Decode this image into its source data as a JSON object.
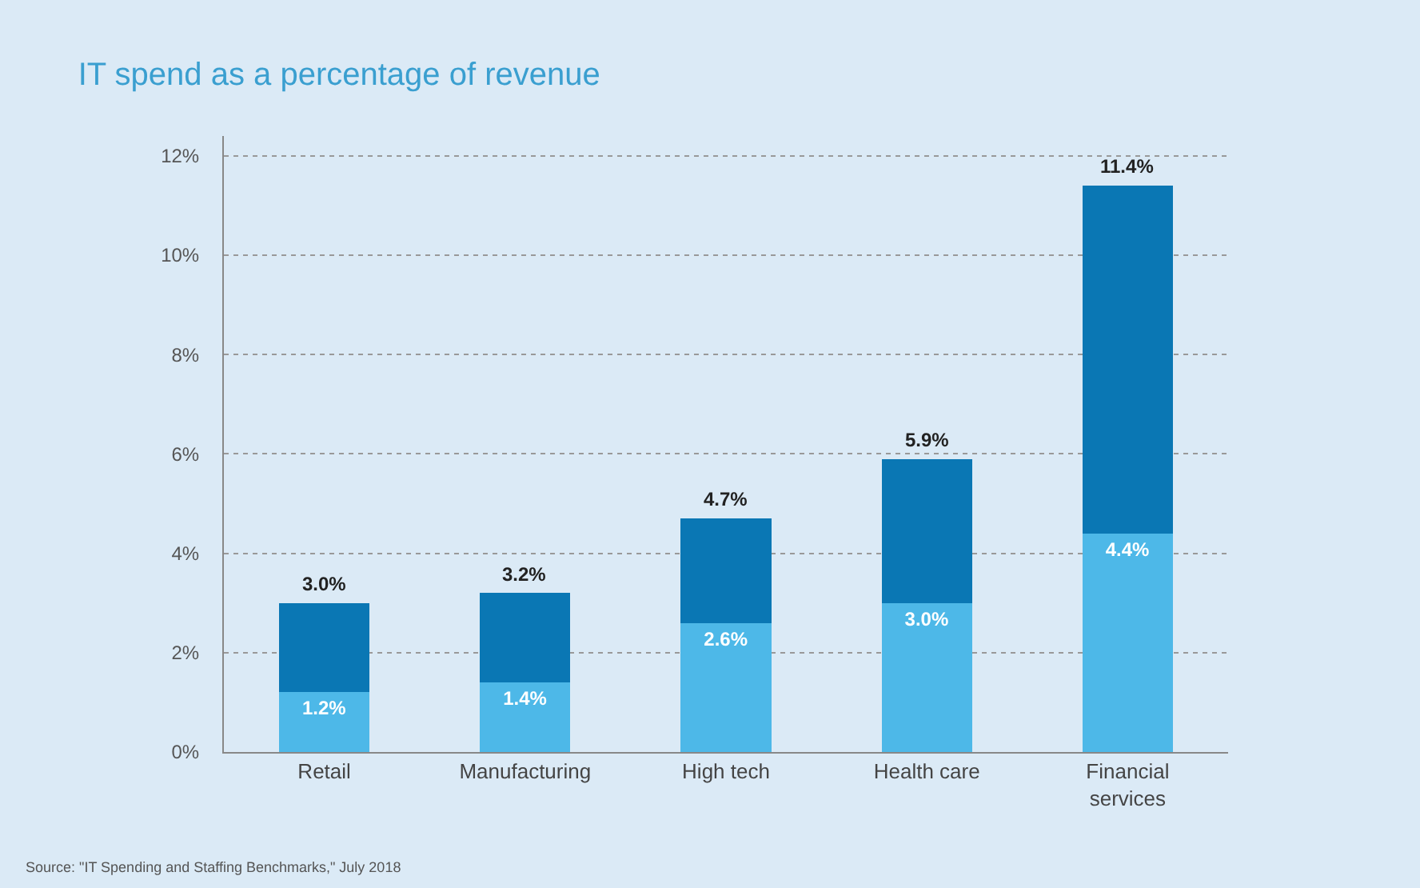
{
  "chart_data": {
    "type": "bar",
    "title": "IT spend as a percentage of revenue",
    "stacked": true,
    "categories": [
      "Retail",
      "Manufacturing",
      "High tech",
      "Health care",
      "Financial services"
    ],
    "series": [
      {
        "color": "#4db8e8",
        "values": [
          1.2,
          1.4,
          2.6,
          3.0,
          4.4
        ],
        "value_labels": [
          "1.2%",
          "1.4%",
          "2.6%",
          "3.0%",
          "4.4%"
        ]
      },
      {
        "color": "#0a77b4",
        "values": [
          1.8,
          1.8,
          2.1,
          2.9,
          7.0
        ]
      }
    ],
    "totals": [
      "3.0%",
      "3.2%",
      "4.7%",
      "5.9%",
      "11.4%"
    ],
    "ylim": [
      0,
      12.4
    ],
    "yticks": [
      {
        "value": 0,
        "label": "0%"
      },
      {
        "value": 2,
        "label": "2%"
      },
      {
        "value": 4,
        "label": "4%"
      },
      {
        "value": 6,
        "label": "6%"
      },
      {
        "value": 8,
        "label": "8%"
      },
      {
        "value": 10,
        "label": "10%"
      },
      {
        "value": 12,
        "label": "12%"
      }
    ],
    "grid": "y",
    "annotations": [
      "Source: \"IT Spending and Staffing Benchmarks,\" July 2018"
    ]
  }
}
